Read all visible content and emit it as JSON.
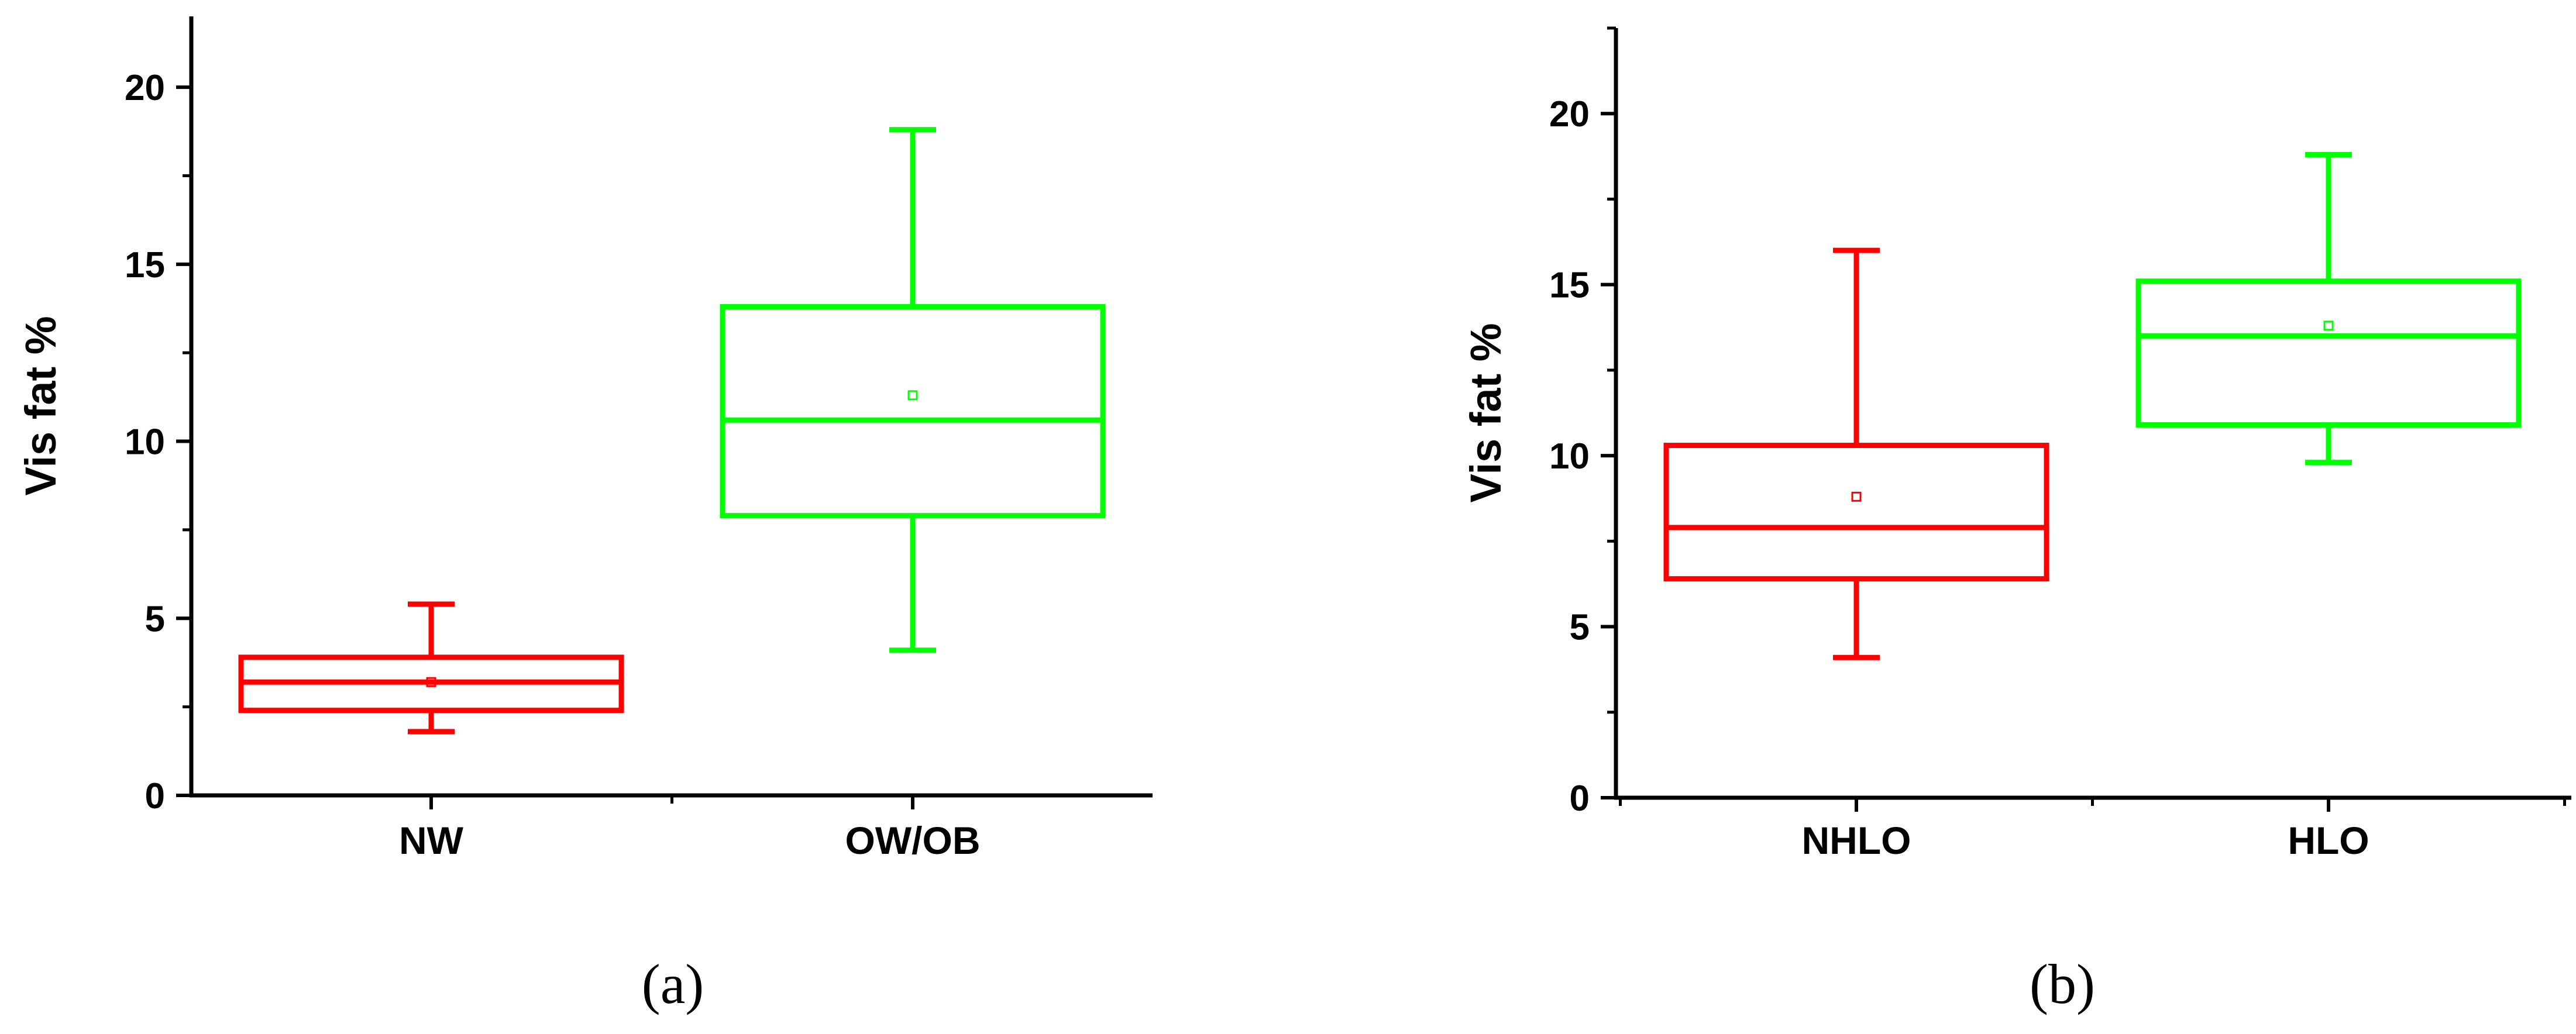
{
  "chart_data": [
    {
      "type": "box",
      "panel_label": "(a)",
      "ylabel": "Vis fat %",
      "xlabel": "",
      "ylim": [
        0,
        22
      ],
      "yticks": [
        0,
        5,
        10,
        15,
        20
      ],
      "categories": [
        "NW",
        "OW/OB"
      ],
      "boxes": [
        {
          "category": "NW",
          "color": "#ff0000",
          "whisker_low": 1.8,
          "q1": 2.4,
          "median": 3.2,
          "q3": 3.9,
          "whisker_high": 5.4,
          "mean": 3.2
        },
        {
          "category": "OW/OB",
          "color": "#00ff00",
          "whisker_low": 4.1,
          "q1": 7.9,
          "median": 10.6,
          "q3": 13.8,
          "whisker_high": 18.8,
          "mean": 11.3
        }
      ]
    },
    {
      "type": "box",
      "panel_label": "(b)",
      "ylabel": "Vis fat %",
      "xlabel": "",
      "ylim": [
        0,
        22.5
      ],
      "yticks": [
        0,
        5,
        10,
        15,
        20
      ],
      "categories": [
        "NHLO",
        "HLO"
      ],
      "boxes": [
        {
          "category": "NHLO",
          "color": "#ff0000",
          "whisker_low": 4.1,
          "q1": 6.4,
          "median": 7.9,
          "q3": 10.3,
          "whisker_high": 16.0,
          "mean": 8.8
        },
        {
          "category": "HLO",
          "color": "#00ff00",
          "whisker_low": 9.8,
          "q1": 10.9,
          "median": 13.5,
          "q3": 15.1,
          "whisker_high": 18.8,
          "mean": 13.8
        }
      ]
    }
  ]
}
